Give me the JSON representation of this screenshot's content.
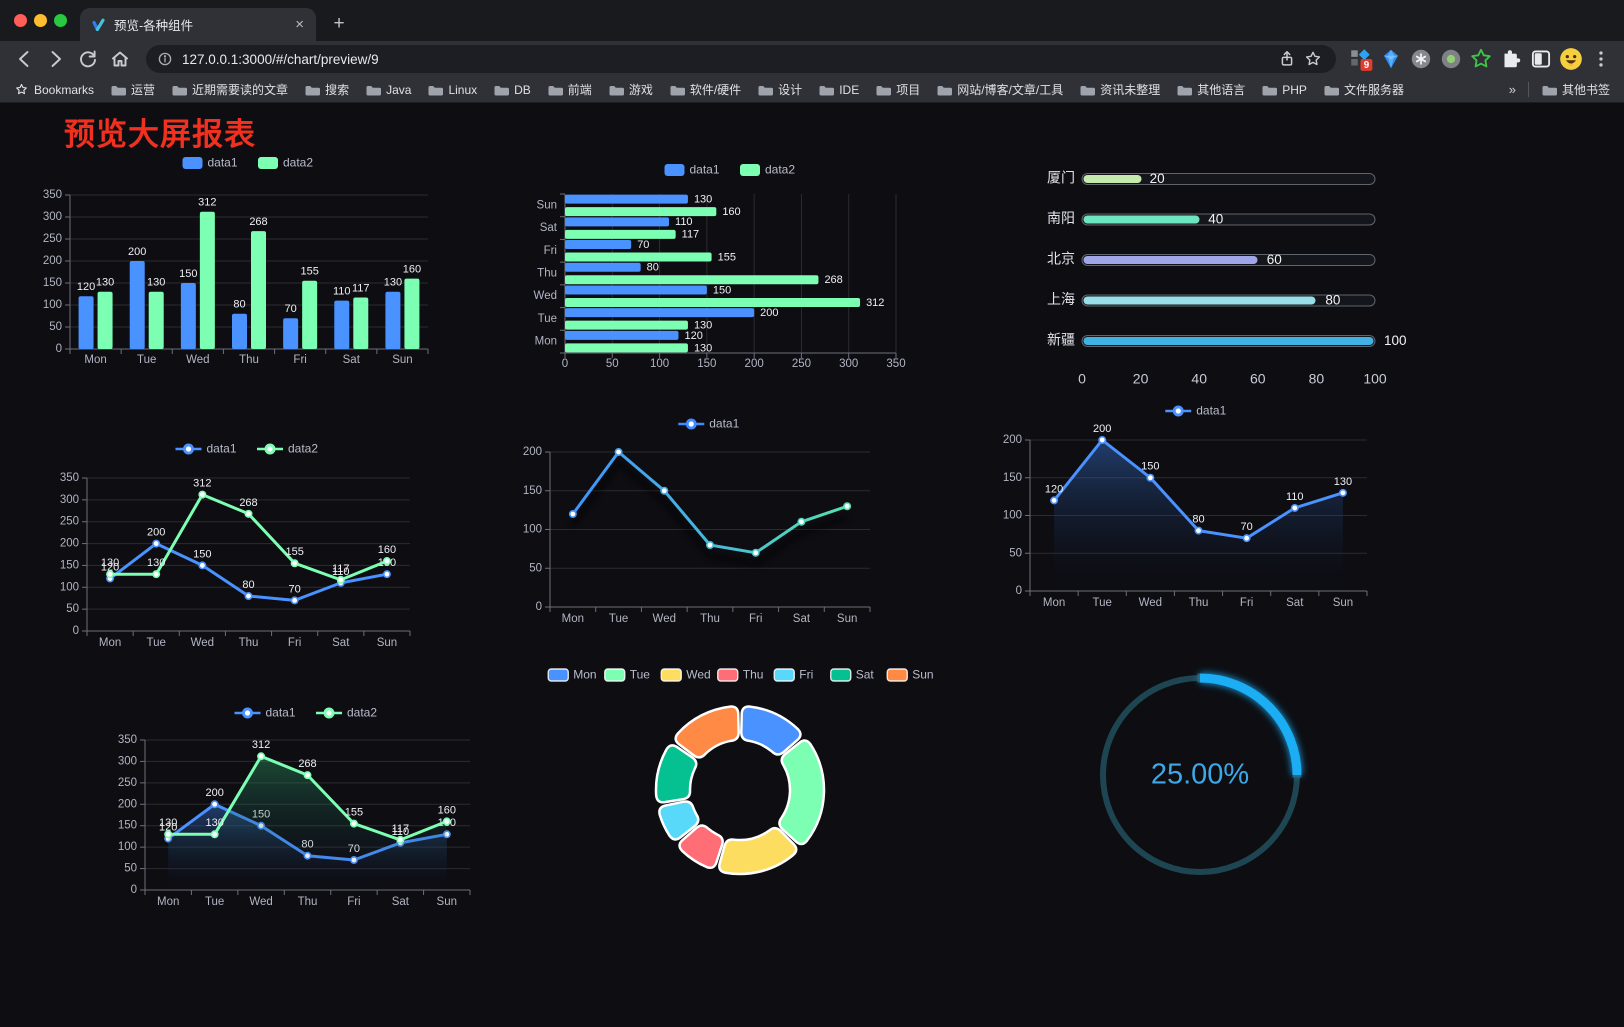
{
  "browser": {
    "tab_title": "预览-各种组件",
    "url": "127.0.0.1:3000/#/chart/preview/9",
    "extension_badge": "9",
    "new_tab_label": "+",
    "tab_close_label": "×"
  },
  "bookmarks_bar": {
    "root_label": "Bookmarks",
    "folders": [
      "运营",
      "近期需要读的文章",
      "搜索",
      "Java",
      "Linux",
      "DB",
      "前端",
      "游戏",
      "软件/硬件",
      "设计",
      "IDE",
      "项目",
      "网站/博客/文章/工具",
      "资讯未整理",
      "其他语言",
      "PHP",
      "文件服务器"
    ],
    "overflow_chevron": "»",
    "other_bookmarks_label": "其他书签"
  },
  "page": {
    "title": "预览大屏报表",
    "title_color": "#f1301f"
  },
  "chart_data": [
    {
      "id": "grouped-bar",
      "type": "bar",
      "categories": [
        "Mon",
        "Tue",
        "Wed",
        "Thu",
        "Fri",
        "Sat",
        "Sun"
      ],
      "series": [
        {
          "name": "data1",
          "color": "#4992ff",
          "values": [
            120,
            200,
            150,
            80,
            70,
            110,
            130
          ]
        },
        {
          "name": "data2",
          "color": "#7cffb2",
          "values": [
            130,
            130,
            312,
            268,
            155,
            117,
            160
          ]
        }
      ],
      "ylim": [
        0,
        350
      ],
      "yticks": [
        0,
        50,
        100,
        150,
        200,
        250,
        300,
        350
      ],
      "legend": [
        "data1",
        "data2"
      ],
      "legend_position": "top",
      "value_labels": true,
      "grid": true
    },
    {
      "id": "horizontal-bar",
      "type": "bar-horizontal",
      "categories_top_to_bottom": [
        "Sun",
        "Sat",
        "Fri",
        "Thu",
        "Wed",
        "Tue",
        "Mon"
      ],
      "series": [
        {
          "name": "data1",
          "color": "#4992ff",
          "values": [
            120,
            200,
            150,
            80,
            70,
            110,
            130
          ]
        },
        {
          "name": "data2",
          "color": "#7cffb2",
          "values": [
            130,
            130,
            312,
            268,
            155,
            117,
            160
          ]
        }
      ],
      "xlim": [
        0,
        350
      ],
      "xticks": [
        0,
        50,
        100,
        150,
        200,
        250,
        300,
        350
      ],
      "legend": [
        "data1",
        "data2"
      ],
      "value_labels": true,
      "grid": true
    },
    {
      "id": "progress-bars",
      "type": "progress",
      "max": 100,
      "xticks": [
        0,
        20,
        40,
        60,
        80,
        100
      ],
      "items": [
        {
          "label": "厦门",
          "value": 20,
          "color": "#c4ebad"
        },
        {
          "label": "南阳",
          "value": 40,
          "color": "#6be6c1"
        },
        {
          "label": "北京",
          "value": 60,
          "color": "#a0a7e6"
        },
        {
          "label": "上海",
          "value": 80,
          "color": "#96dee8"
        },
        {
          "label": "新疆",
          "value": 100,
          "color": "#3fb1e3"
        }
      ]
    },
    {
      "id": "two-line",
      "type": "line",
      "categories": [
        "Mon",
        "Tue",
        "Wed",
        "Thu",
        "Fri",
        "Sat",
        "Sun"
      ],
      "series": [
        {
          "name": "data1",
          "color": "#4992ff",
          "values": [
            120,
            200,
            150,
            80,
            70,
            110,
            130
          ]
        },
        {
          "name": "data2",
          "color": "#7cffb2",
          "values": [
            130,
            130,
            312,
            268,
            155,
            117,
            160
          ]
        }
      ],
      "ylim": [
        0,
        350
      ],
      "yticks": [
        0,
        50,
        100,
        150,
        200,
        250,
        300,
        350
      ],
      "legend": [
        "data1",
        "data2"
      ],
      "value_labels": true
    },
    {
      "id": "gradient-line",
      "type": "line",
      "categories": [
        "Mon",
        "Tue",
        "Wed",
        "Thu",
        "Fri",
        "Sat",
        "Sun"
      ],
      "series": [
        {
          "name": "data1",
          "gradient": [
            "#3e8cff",
            "#55e8a6"
          ],
          "color": "#4992ff",
          "values": [
            120,
            200,
            150,
            80,
            70,
            110,
            130
          ]
        }
      ],
      "ylim": [
        0,
        200
      ],
      "yticks": [
        0,
        50,
        100,
        150,
        200
      ],
      "legend": [
        "data1"
      ],
      "value_labels": false,
      "shadow": true
    },
    {
      "id": "single-area",
      "type": "area",
      "categories": [
        "Mon",
        "Tue",
        "Wed",
        "Thu",
        "Fri",
        "Sat",
        "Sun"
      ],
      "series": [
        {
          "name": "data1",
          "color": "#4992ff",
          "area": "rgba(55,110,200,0.50)",
          "values": [
            120,
            200,
            150,
            80,
            70,
            110,
            130
          ]
        }
      ],
      "ylim": [
        0,
        200
      ],
      "yticks": [
        0,
        50,
        100,
        150,
        200
      ],
      "legend": [
        "data1"
      ],
      "value_labels": true
    },
    {
      "id": "two-area",
      "type": "area",
      "categories": [
        "Mon",
        "Tue",
        "Wed",
        "Thu",
        "Fri",
        "Sat",
        "Sun"
      ],
      "series": [
        {
          "name": "data1",
          "color": "#4992ff",
          "area": "rgba(60,120,216,0.45)",
          "values": [
            120,
            200,
            150,
            80,
            70,
            110,
            130
          ]
        },
        {
          "name": "data2",
          "color": "#7cffb2",
          "area": "rgba(45,150,95,0.45)",
          "values": [
            130,
            130,
            312,
            268,
            155,
            117,
            160
          ]
        }
      ],
      "ylim": [
        0,
        350
      ],
      "yticks": [
        0,
        50,
        100,
        150,
        200,
        250,
        300,
        350
      ],
      "legend": [
        "data1",
        "data2"
      ],
      "value_labels": true
    },
    {
      "id": "donut",
      "type": "donut",
      "slices": [
        {
          "label": "Mon",
          "value": 120,
          "color": "#4992ff"
        },
        {
          "label": "Tue",
          "value": 200,
          "color": "#7cffb2"
        },
        {
          "label": "Wed",
          "value": 150,
          "color": "#fddd60"
        },
        {
          "label": "Thu",
          "value": 80,
          "color": "#ff6e76"
        },
        {
          "label": "Fri",
          "value": 70,
          "color": "#58d9f9"
        },
        {
          "label": "Sat",
          "value": 110,
          "color": "#05c091"
        },
        {
          "label": "Sun",
          "value": 130,
          "color": "#ff8a45"
        }
      ]
    },
    {
      "id": "gauge",
      "type": "gauge",
      "value_percent": 25,
      "display": "25.00%",
      "progress_color": "#1daef5",
      "track_color": "#1e4652",
      "text_color": "#3da8e8"
    }
  ]
}
